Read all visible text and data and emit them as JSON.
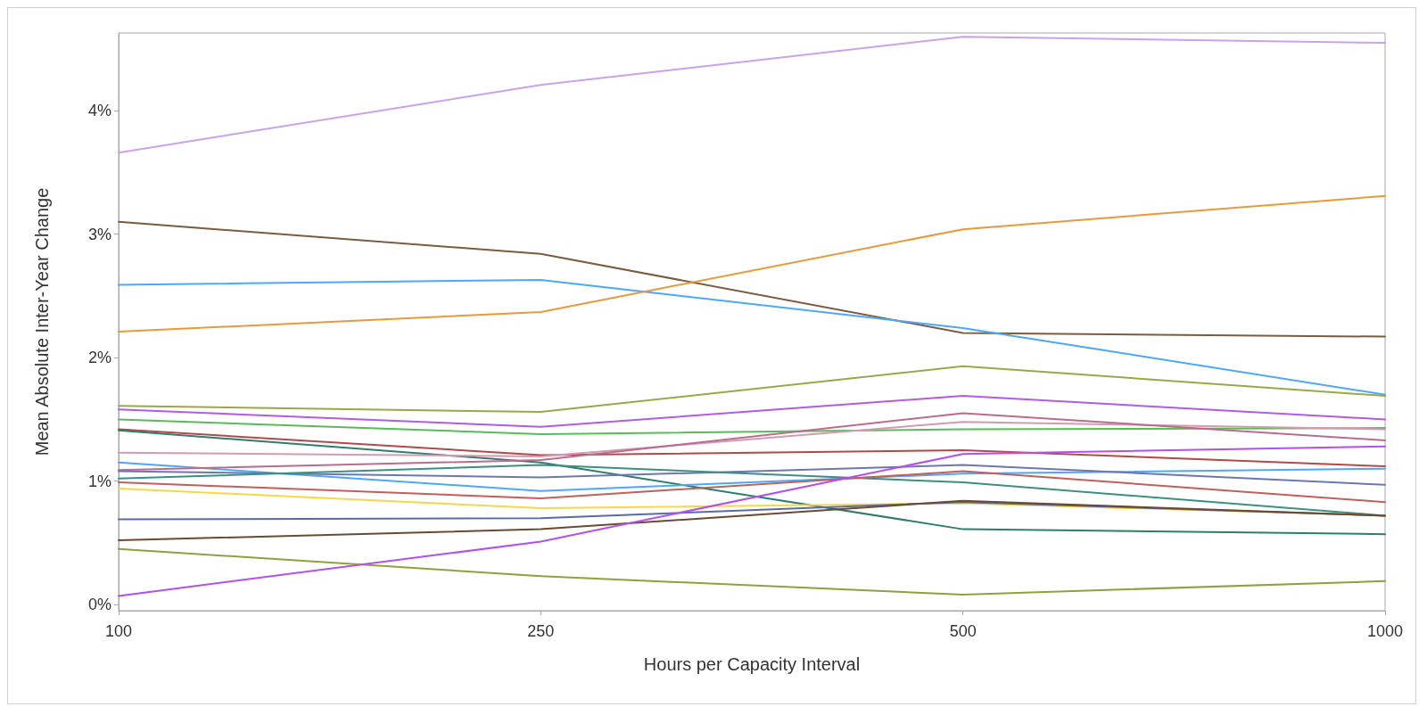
{
  "chart_data": {
    "type": "line",
    "xlabel": "Hours per Capacity Interval",
    "ylabel": "Mean Absolute Inter-Year Change",
    "categories": [
      "100",
      "250",
      "500",
      "1000"
    ],
    "ylim": [
      -0.05,
      4.63
    ],
    "yticks": [
      {
        "value": 0,
        "label": "0%"
      },
      {
        "value": 1,
        "label": "1%"
      },
      {
        "value": 2,
        "label": "2%"
      },
      {
        "value": 3,
        "label": "3%"
      },
      {
        "value": 4,
        "label": "4%"
      }
    ],
    "grid": false,
    "marker": "none",
    "line_style": "solid",
    "series": [
      {
        "color": "#c8a2f0",
        "values": [
          3.66,
          4.21,
          4.6,
          4.55
        ]
      },
      {
        "color": "#7a5c3e",
        "values": [
          3.1,
          2.84,
          2.2,
          2.17
        ]
      },
      {
        "color": "#4da6ff",
        "values": [
          2.59,
          2.63,
          2.24,
          1.7
        ]
      },
      {
        "color": "#e69a3c",
        "values": [
          2.21,
          2.37,
          3.04,
          3.31
        ]
      },
      {
        "color": "#9aa84a",
        "values": [
          1.61,
          1.56,
          1.93,
          1.69
        ]
      },
      {
        "color": "#b05ce6",
        "values": [
          1.58,
          1.44,
          1.69,
          1.5
        ]
      },
      {
        "color": "#5cb85c",
        "values": [
          1.5,
          1.38,
          1.42,
          1.43
        ]
      },
      {
        "color": "#b04a4a",
        "values": [
          1.42,
          1.21,
          1.25,
          1.12
        ]
      },
      {
        "color": "#2e7d6e",
        "values": [
          1.41,
          1.15,
          0.61,
          0.57
        ]
      },
      {
        "color": "#d49ab2",
        "values": [
          1.23,
          1.2,
          1.48,
          1.42
        ]
      },
      {
        "color": "#4da6ff",
        "values": [
          1.15,
          0.92,
          1.06,
          1.1
        ]
      },
      {
        "color": "#b86d8c",
        "values": [
          1.09,
          1.17,
          1.55,
          1.33
        ]
      },
      {
        "color": "#6b78b0",
        "values": [
          1.08,
          1.03,
          1.13,
          0.97
        ]
      },
      {
        "color": "#3d8f80",
        "values": [
          1.02,
          1.13,
          0.99,
          0.72
        ]
      },
      {
        "color": "#c0605a",
        "values": [
          0.99,
          0.86,
          1.08,
          0.83
        ]
      },
      {
        "color": "#f5d84a",
        "values": [
          0.94,
          0.78,
          0.82,
          0.72
        ]
      },
      {
        "color": "#5a6aa8",
        "values": [
          0.69,
          0.7,
          0.83,
          0.72
        ]
      },
      {
        "color": "#6b4a30",
        "values": [
          0.52,
          0.61,
          0.84,
          0.72
        ]
      },
      {
        "color": "#8fa040",
        "values": [
          0.45,
          0.23,
          0.08,
          0.19
        ]
      },
      {
        "color": "#b050f0",
        "values": [
          0.07,
          0.51,
          1.22,
          1.28
        ]
      }
    ]
  }
}
